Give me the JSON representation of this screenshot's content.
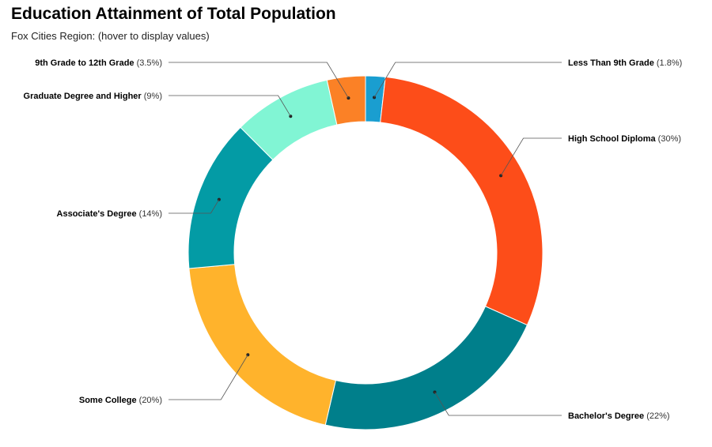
{
  "header": {
    "title": "Education Attainment of Total Population",
    "subtitle": "Fox Cities Region: (hover to display values)"
  },
  "chart_data": {
    "type": "pie",
    "variant": "donut",
    "title": "Education Attainment of Total Population",
    "subtitle": "Fox Cities Region: (hover to display values)",
    "unit": "%",
    "slices": [
      {
        "label": "Less Than 9th Grade",
        "value": 1.8,
        "value_label": "(1.8%)",
        "color": "#1a9ed0"
      },
      {
        "label": "High School Diploma",
        "value": 30,
        "value_label": "(30%)",
        "color": "#fd4d19"
      },
      {
        "label": "Bachelor's Degree",
        "value": 22,
        "value_label": "(22%)",
        "color": "#007f8b"
      },
      {
        "label": "Some College",
        "value": 20,
        "value_label": "(20%)",
        "color": "#ffb32c"
      },
      {
        "label": "Associate's Degree",
        "value": 14,
        "value_label": "(14%)",
        "color": "#039ba5"
      },
      {
        "label": "Graduate Degree and Higher",
        "value": 9,
        "value_label": "(9%)",
        "color": "#81f5d4"
      },
      {
        "label": "9th Grade to 12th Grade",
        "value": 3.5,
        "value_label": "(3.5%)",
        "color": "#fb8126"
      }
    ]
  }
}
